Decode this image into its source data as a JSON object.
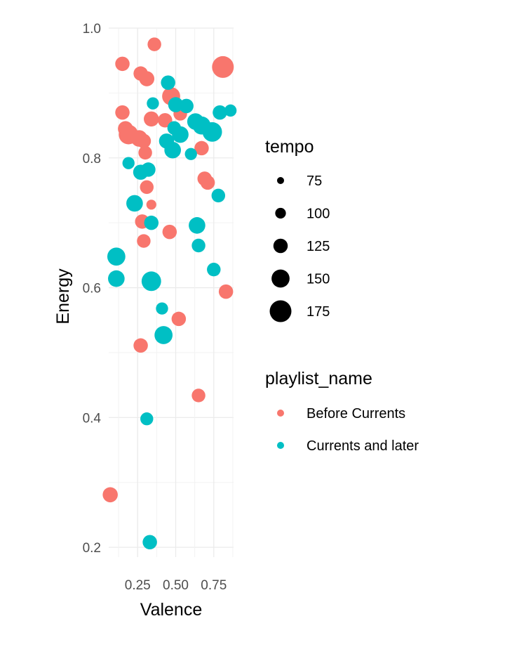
{
  "chart_data": {
    "type": "scatter",
    "xlabel": "Valence",
    "ylabel": "Energy",
    "xlim": [
      0.06,
      0.88
    ],
    "ylim": [
      0.185,
      1.0
    ],
    "x_ticks": [
      0.25,
      0.5,
      0.75
    ],
    "x_tick_labels": [
      "0.25",
      "0.50",
      "0.75"
    ],
    "y_ticks": [
      0.2,
      0.4,
      0.6,
      0.8,
      1.0
    ],
    "y_tick_labels": [
      "0.2",
      "0.4",
      "0.6",
      "0.8",
      "1.0"
    ],
    "grid": true,
    "legend_position": "right",
    "size_legend": {
      "title": "tempo",
      "entries": [
        {
          "label": "75",
          "value": 75
        },
        {
          "label": "100",
          "value": 100
        },
        {
          "label": "125",
          "value": 125
        },
        {
          "label": "150",
          "value": 150
        },
        {
          "label": "175",
          "value": 175
        }
      ]
    },
    "color_legend": {
      "title": "playlist_name",
      "entries": [
        {
          "label": "Before Currents",
          "color": "#F8766D"
        },
        {
          "label": "Currents and later",
          "color": "#00BFC4"
        }
      ]
    },
    "series": [
      {
        "name": "Before Currents",
        "color": "#F8766D",
        "points": [
          {
            "x": 0.36,
            "y": 0.975,
            "tempo": 120
          },
          {
            "x": 0.15,
            "y": 0.945,
            "tempo": 125
          },
          {
            "x": 0.27,
            "y": 0.93,
            "tempo": 125
          },
          {
            "x": 0.31,
            "y": 0.922,
            "tempo": 130
          },
          {
            "x": 0.81,
            "y": 0.94,
            "tempo": 175
          },
          {
            "x": 0.47,
            "y": 0.895,
            "tempo": 150
          },
          {
            "x": 0.15,
            "y": 0.87,
            "tempo": 125
          },
          {
            "x": 0.34,
            "y": 0.86,
            "tempo": 130
          },
          {
            "x": 0.43,
            "y": 0.858,
            "tempo": 125
          },
          {
            "x": 0.53,
            "y": 0.868,
            "tempo": 120
          },
          {
            "x": 0.17,
            "y": 0.845,
            "tempo": 130
          },
          {
            "x": 0.19,
            "y": 0.836,
            "tempo": 160
          },
          {
            "x": 0.26,
            "y": 0.83,
            "tempo": 140
          },
          {
            "x": 0.29,
            "y": 0.826,
            "tempo": 125
          },
          {
            "x": 0.67,
            "y": 0.815,
            "tempo": 125
          },
          {
            "x": 0.3,
            "y": 0.808,
            "tempo": 120
          },
          {
            "x": 0.69,
            "y": 0.768,
            "tempo": 125
          },
          {
            "x": 0.71,
            "y": 0.762,
            "tempo": 125
          },
          {
            "x": 0.31,
            "y": 0.755,
            "tempo": 120
          },
          {
            "x": 0.34,
            "y": 0.728,
            "tempo": 95
          },
          {
            "x": 0.28,
            "y": 0.702,
            "tempo": 125
          },
          {
            "x": 0.46,
            "y": 0.686,
            "tempo": 125
          },
          {
            "x": 0.29,
            "y": 0.672,
            "tempo": 120
          },
          {
            "x": 0.83,
            "y": 0.594,
            "tempo": 125
          },
          {
            "x": 0.52,
            "y": 0.552,
            "tempo": 125
          },
          {
            "x": 0.27,
            "y": 0.511,
            "tempo": 125
          },
          {
            "x": 0.65,
            "y": 0.434,
            "tempo": 120
          },
          {
            "x": 0.07,
            "y": 0.281,
            "tempo": 130
          }
        ]
      },
      {
        "name": "Currents and later",
        "color": "#00BFC4",
        "points": [
          {
            "x": 0.45,
            "y": 0.916,
            "tempo": 125
          },
          {
            "x": 0.35,
            "y": 0.884,
            "tempo": 110
          },
          {
            "x": 0.5,
            "y": 0.882,
            "tempo": 130
          },
          {
            "x": 0.57,
            "y": 0.88,
            "tempo": 125
          },
          {
            "x": 0.79,
            "y": 0.87,
            "tempo": 125
          },
          {
            "x": 0.86,
            "y": 0.873,
            "tempo": 110
          },
          {
            "x": 0.63,
            "y": 0.856,
            "tempo": 140
          },
          {
            "x": 0.67,
            "y": 0.85,
            "tempo": 150
          },
          {
            "x": 0.74,
            "y": 0.84,
            "tempo": 160
          },
          {
            "x": 0.49,
            "y": 0.846,
            "tempo": 120
          },
          {
            "x": 0.53,
            "y": 0.836,
            "tempo": 140
          },
          {
            "x": 0.44,
            "y": 0.826,
            "tempo": 130
          },
          {
            "x": 0.48,
            "y": 0.812,
            "tempo": 140
          },
          {
            "x": 0.6,
            "y": 0.806,
            "tempo": 110
          },
          {
            "x": 0.19,
            "y": 0.792,
            "tempo": 110
          },
          {
            "x": 0.27,
            "y": 0.778,
            "tempo": 130
          },
          {
            "x": 0.32,
            "y": 0.782,
            "tempo": 125
          },
          {
            "x": 0.78,
            "y": 0.742,
            "tempo": 120
          },
          {
            "x": 0.23,
            "y": 0.73,
            "tempo": 140
          },
          {
            "x": 0.34,
            "y": 0.7,
            "tempo": 125
          },
          {
            "x": 0.64,
            "y": 0.696,
            "tempo": 140
          },
          {
            "x": 0.65,
            "y": 0.665,
            "tempo": 120
          },
          {
            "x": 0.11,
            "y": 0.648,
            "tempo": 150
          },
          {
            "x": 0.75,
            "y": 0.628,
            "tempo": 120
          },
          {
            "x": 0.11,
            "y": 0.614,
            "tempo": 140
          },
          {
            "x": 0.34,
            "y": 0.61,
            "tempo": 160
          },
          {
            "x": 0.41,
            "y": 0.568,
            "tempo": 110
          },
          {
            "x": 0.42,
            "y": 0.527,
            "tempo": 150
          },
          {
            "x": 0.31,
            "y": 0.398,
            "tempo": 115
          },
          {
            "x": 0.33,
            "y": 0.208,
            "tempo": 125
          }
        ]
      }
    ]
  }
}
